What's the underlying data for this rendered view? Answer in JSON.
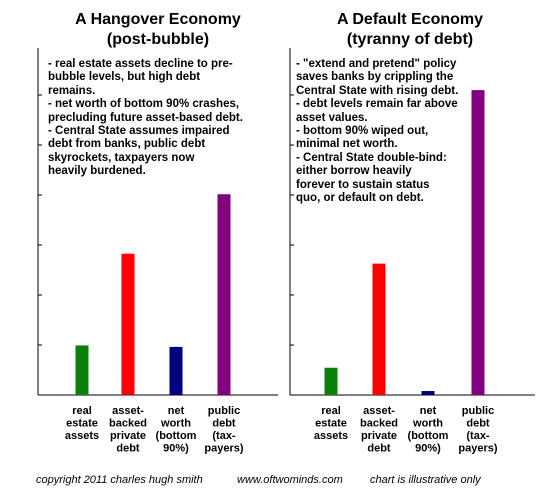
{
  "chart_data": [
    {
      "type": "bar",
      "title_line1": "A Hangover Economy",
      "title_line2": "(post-bubble)",
      "notes": [
        "- real estate assets decline to pre-",
        "bubble levels, but high debt",
        "remains.",
        "-  net worth of bottom 90% crashes,",
        "precluding future asset-based debt.",
        "- Central State assumes impaired",
        "debt from banks, public debt",
        "skyrockets, taxpayers now",
        "heavily burdened."
      ],
      "categories": [
        [
          "real",
          "estate",
          "assets"
        ],
        [
          "asset-",
          "backed",
          "private",
          "debt"
        ],
        [
          "net",
          "worth",
          "(bottom",
          "90%)"
        ],
        [
          "public",
          "debt",
          "(tax-",
          "payers)"
        ]
      ],
      "values": [
        1.0,
        2.85,
        0.97,
        4.05
      ],
      "colors": [
        "#0a7f0a",
        "#ff0000",
        "#00007f",
        "#800080"
      ],
      "ylim": [
        0,
        7
      ]
    },
    {
      "type": "bar",
      "title_line1": "A Default Economy",
      "title_line2": "(tyranny of debt)",
      "notes": [
        "- \"extend and pretend\" policy",
        "saves banks by crippling the",
        "Central State with rising debt.",
        "- debt levels remain far above",
        "asset values.",
        "- bottom 90% wiped out,",
        "minimal net worth.",
        "- Central State double-bind:",
        "either borrow heavily",
        "forever to sustain status",
        "quo, or default on debt."
      ],
      "categories": [
        [
          "real",
          "estate",
          "assets"
        ],
        [
          "asset-",
          "backed",
          "private",
          "debt"
        ],
        [
          "net",
          "worth",
          "(bottom",
          "90%)"
        ],
        [
          "public",
          "debt",
          "(tax-",
          "payers)"
        ]
      ],
      "values": [
        0.55,
        2.65,
        0.08,
        6.15
      ],
      "colors": [
        "#0a7f0a",
        "#ff0000",
        "#00007f",
        "#800080"
      ],
      "ylim": [
        0,
        7
      ]
    }
  ],
  "footer": {
    "copyright": "copyright 2011 charles hugh smith",
    "website": "www.oftwominds.com",
    "disclaimer": "chart is illustrative only"
  }
}
